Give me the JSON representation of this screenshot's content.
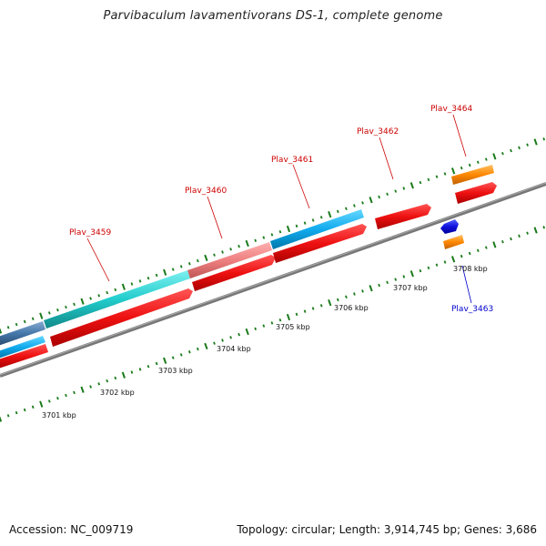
{
  "title": "Parvibaculum lavamentivorans DS-1, complete genome",
  "footer": {
    "accession": "Accession: NC_009719",
    "summary": "Topology: circular; Length: 3,914,745 bp; Genes: 3,686"
  },
  "kbp_labels": [
    "3701 kbp",
    "3702 kbp",
    "3703 kbp",
    "3704 kbp",
    "3705 kbp",
    "3706 kbp",
    "3707 kbp",
    "3708 kbp"
  ],
  "gene_labels": [
    "Plav_3459",
    "Plav_3460",
    "Plav_3461",
    "Plav_3462",
    "Plav_3463",
    "Plav_3464"
  ],
  "colors": {
    "forward_label": "#cc0000",
    "reverse_label": "#0000cc",
    "backbone": "#777777",
    "tick": "#1a7a1a",
    "cds_red": "#ee1111",
    "cyan": "#22cccc",
    "sky": "#11aaee",
    "salmon": "#ee8080",
    "steel": "#4477aa",
    "orange": "#ff8800",
    "blue": "#1111dd"
  }
}
